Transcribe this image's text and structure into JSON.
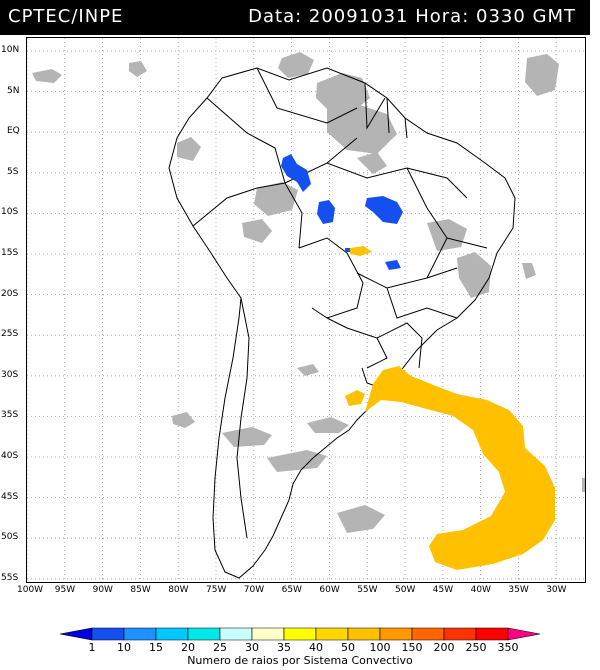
{
  "header": {
    "source": "CPTEC/INPE",
    "date_label": "Data: 20091031 Hora: 0330 GMT"
  },
  "axes": {
    "lat_labels": [
      "10N",
      "5N",
      "EQ",
      "5S",
      "10S",
      "15S",
      "20S",
      "25S",
      "30S",
      "35S",
      "40S",
      "45S",
      "50S",
      "55S"
    ],
    "lon_labels": [
      "100W",
      "95W",
      "90W",
      "85W",
      "80W",
      "75W",
      "70W",
      "65W",
      "60W",
      "55W",
      "50W",
      "45W",
      "40W",
      "35W",
      "30W"
    ]
  },
  "legend": {
    "caption": "Numero de raios por Sistema Convectivo",
    "levels": [
      "1",
      "10",
      "15",
      "20",
      "25",
      "30",
      "35",
      "40",
      "50",
      "100",
      "150",
      "200",
      "250",
      "350"
    ],
    "colors": [
      "#0000e0",
      "#1450f0",
      "#1e90ff",
      "#00c8ff",
      "#00e8e8",
      "#c8ffff",
      "#ffffc8",
      "#ffff00",
      "#ffd700",
      "#ffc000",
      "#ff9900",
      "#ff6600",
      "#ff3300",
      "#ff0000",
      "#ff0080"
    ]
  },
  "map": {
    "cloud_color": "#b4b4b4",
    "land_line_color": "#000000",
    "grid_color": "#9a9a9a"
  }
}
